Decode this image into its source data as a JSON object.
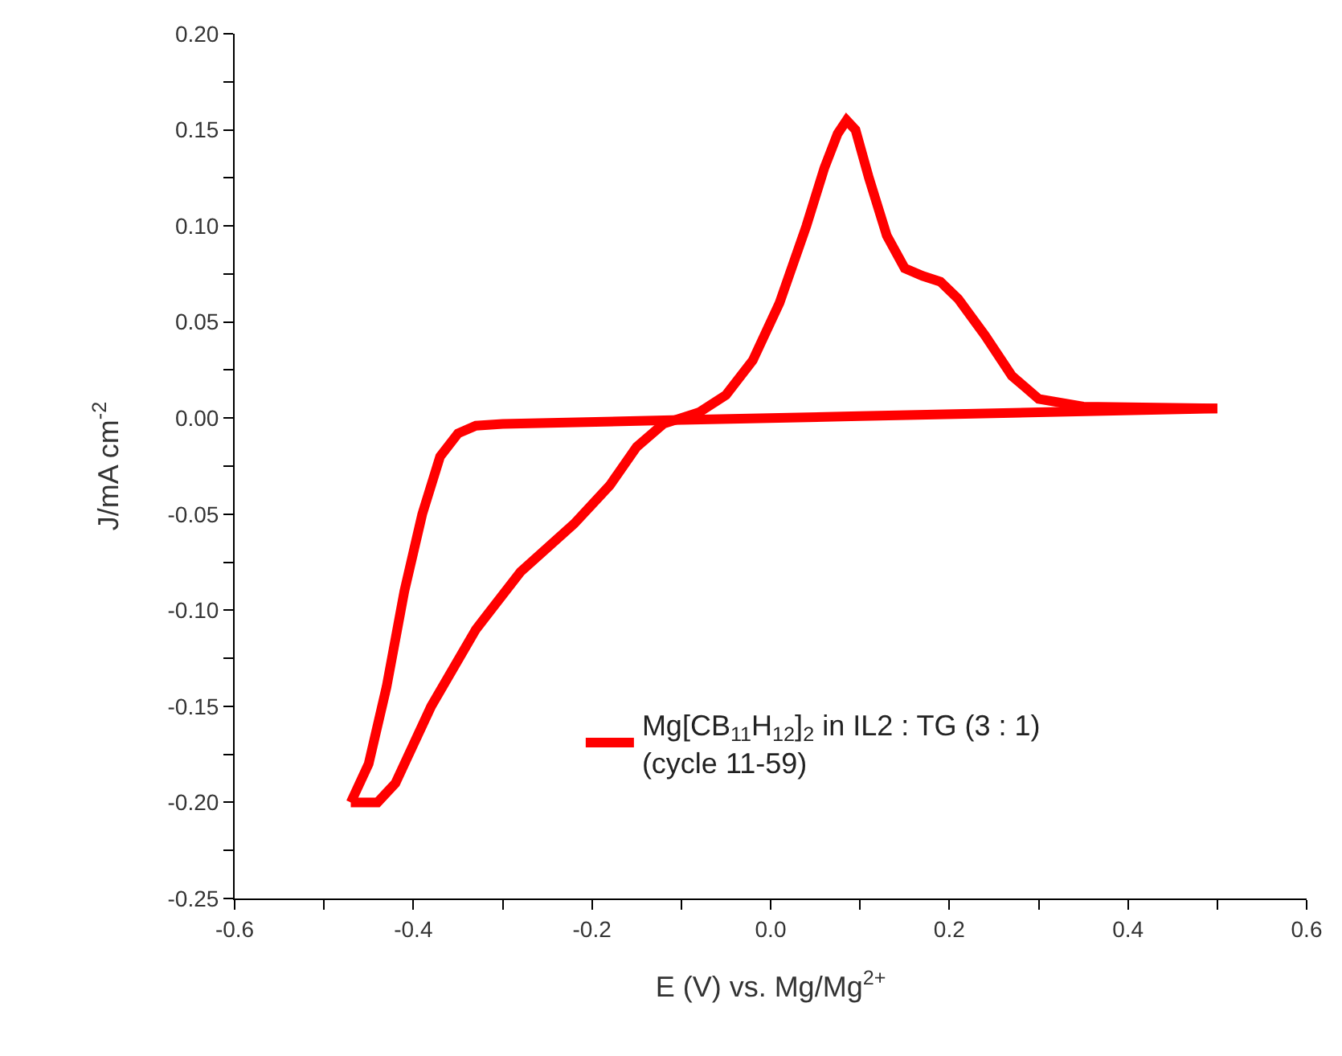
{
  "chart_data": {
    "type": "line",
    "xlabel": "E (V) vs. Mg/Mg$^{2+}$",
    "ylabel": "J/mA cm$^{-2}$",
    "xlim": [
      -0.6,
      0.6
    ],
    "ylim": [
      -0.25,
      0.2
    ],
    "xticks": [
      -0.6,
      {
        "value": -0.5,
        "label": null
      },
      -0.4,
      {
        "value": -0.3,
        "label": null
      },
      -0.2,
      {
        "value": -0.1,
        "label": null
      },
      {
        "value": 0,
        "label": "0.0"
      },
      {
        "value": 0.1,
        "label": null
      },
      0.2,
      {
        "value": 0.3,
        "label": null
      },
      0.4,
      {
        "value": 0.5,
        "label": null
      },
      0.6
    ],
    "yticks": [
      {
        "value": -0.25,
        "label": "-0.25"
      },
      {
        "value": -0.225,
        "label": null
      },
      {
        "value": -0.2,
        "label": "-0.20"
      },
      {
        "value": -0.175,
        "label": null
      },
      {
        "value": -0.15,
        "label": "-0.15"
      },
      {
        "value": -0.125,
        "label": null
      },
      {
        "value": -0.1,
        "label": "-0.10"
      },
      {
        "value": -0.075,
        "label": null
      },
      {
        "value": -0.05,
        "label": "-0.05"
      },
      {
        "value": -0.025,
        "label": null
      },
      {
        "value": 0,
        "label": "0.00"
      },
      {
        "value": 0.025,
        "label": null
      },
      {
        "value": 0.05,
        "label": "0.05"
      },
      {
        "value": 0.075,
        "label": null
      },
      {
        "value": 0.1,
        "label": "0.10"
      },
      {
        "value": 0.125,
        "label": null
      },
      {
        "value": 0.15,
        "label": "0.15"
      },
      {
        "value": 0.175,
        "label": null
      },
      {
        "value": 0.2,
        "label": "0.20"
      }
    ],
    "legend": "bottom right",
    "marker": "none",
    "line_style": "solid",
    "series": [
      {
        "name": "Mg[CB$_{11}$H$_{12}$]$_{2}$ in IL2 : TG (3 : 1)\n(cycle 11-59)",
        "color": "#ff0000",
        "x": [
          0.5,
          0.3,
          0.1,
          -0.1,
          -0.3,
          -0.33,
          -0.35,
          -0.37,
          -0.39,
          -0.41,
          -0.43,
          -0.45,
          -0.47
        ],
        "values": [
          0.005,
          0.003,
          0.001,
          -0.001,
          -0.003,
          -0.004,
          -0.008,
          -0.02,
          -0.05,
          -0.09,
          -0.14,
          -0.18,
          -0.2
        ]
      },
      {
        "color": "#ff0000",
        "x": [
          -0.47,
          -0.44,
          -0.42,
          -0.38,
          -0.33,
          -0.28,
          -0.22,
          -0.18,
          -0.15,
          -0.12,
          -0.08,
          -0.05,
          -0.02,
          0.01,
          0.04,
          0.06,
          0.075,
          0.085,
          0.095,
          0.11,
          0.13,
          0.15,
          0.17,
          0.19,
          0.21,
          0.24,
          0.27,
          0.3,
          0.35,
          0.5
        ],
        "values": [
          -0.2,
          -0.2,
          -0.19,
          -0.15,
          -0.11,
          -0.08,
          -0.055,
          -0.035,
          -0.015,
          -0.003,
          0.003,
          0.012,
          0.03,
          0.06,
          0.1,
          0.13,
          0.148,
          0.155,
          0.15,
          0.125,
          0.095,
          0.078,
          0.074,
          0.071,
          0.062,
          0.043,
          0.022,
          0.01,
          0.006,
          0.005
        ]
      }
    ]
  }
}
